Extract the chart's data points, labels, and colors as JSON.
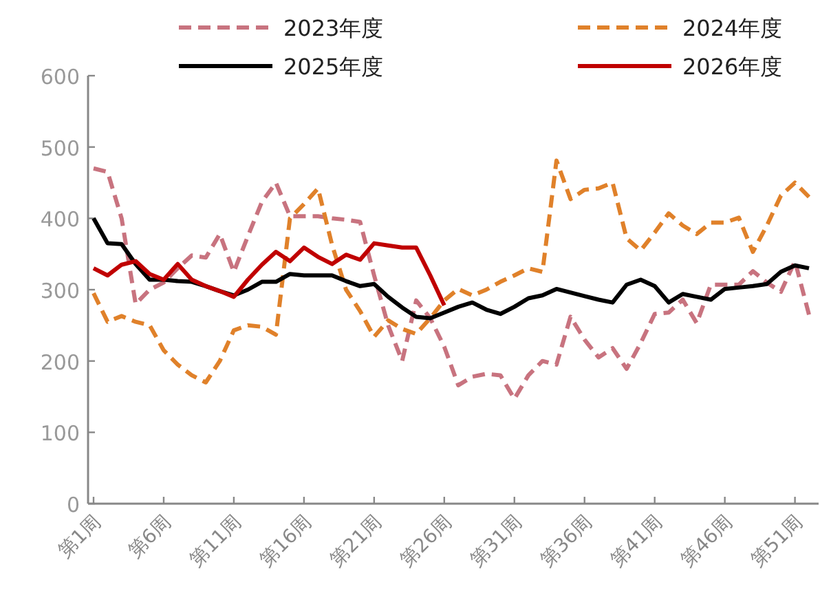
{
  "chart_data": {
    "type": "line",
    "categories": [
      "第1周",
      null,
      null,
      null,
      null,
      "第6周",
      null,
      null,
      null,
      null,
      "第11周",
      null,
      null,
      null,
      null,
      "第16周",
      null,
      null,
      null,
      null,
      "第21周",
      null,
      null,
      null,
      null,
      "第26周",
      null,
      null,
      null,
      null,
      "第31周",
      null,
      null,
      null,
      null,
      "第36周",
      null,
      null,
      null,
      null,
      "第41周",
      null,
      null,
      null,
      null,
      "第46周",
      null,
      null,
      null,
      null,
      "第51周",
      null
    ],
    "series": [
      {
        "name": "2023年度",
        "color": "#c8737f",
        "line_style": "dashed",
        "values": [
          470,
          465,
          400,
          280,
          300,
          310,
          330,
          348,
          345,
          378,
          325,
          375,
          423,
          450,
          403,
          403,
          403,
          400,
          398,
          395,
          320,
          250,
          200,
          285,
          260,
          220,
          166,
          178,
          182,
          180,
          147,
          180,
          200,
          195,
          262,
          230,
          205,
          218,
          189,
          225,
          266,
          268,
          286,
          253,
          307,
          307,
          307,
          326,
          310,
          297,
          340,
          265
        ]
      },
      {
        "name": "2024年度",
        "color": "#e0812a",
        "line_style": "dashed",
        "values": [
          295,
          255,
          263,
          255,
          250,
          215,
          195,
          180,
          170,
          200,
          243,
          250,
          248,
          237,
          400,
          420,
          442,
          363,
          300,
          270,
          234,
          257,
          245,
          238,
          260,
          285,
          301,
          292,
          300,
          311,
          320,
          330,
          325,
          481,
          427,
          440,
          442,
          450,
          372,
          355,
          380,
          407,
          390,
          378,
          394,
          394,
          401,
          353,
          390,
          432,
          450,
          430
        ]
      },
      {
        "name": "2025年度",
        "color": "#000000",
        "line_style": "solid",
        "values": [
          400,
          365,
          364,
          336,
          314,
          314,
          312,
          311,
          305,
          298,
          292,
          300,
          311,
          311,
          322,
          320,
          320,
          320,
          312,
          305,
          308,
          290,
          275,
          262,
          260,
          268,
          276,
          282,
          272,
          266,
          276,
          288,
          292,
          301,
          296,
          291,
          286,
          282,
          307,
          314,
          305,
          282,
          294,
          290,
          286,
          301,
          303,
          305,
          308,
          325,
          334,
          330
        ]
      },
      {
        "name": "2026年度",
        "color": "#c00000",
        "line_style": "solid",
        "values": [
          330,
          320,
          335,
          340,
          322,
          314,
          336,
          314,
          305,
          298,
          290,
          314,
          335,
          353,
          340,
          359,
          346,
          336,
          349,
          342,
          365,
          362,
          359,
          359,
          320,
          278,
          null,
          null,
          null,
          null,
          null,
          null,
          null,
          null,
          null,
          null,
          null,
          null,
          null,
          null,
          null,
          null,
          null,
          null,
          null,
          null,
          null,
          null,
          null,
          null,
          null,
          null
        ]
      }
    ],
    "ylim": [
      0,
      600
    ],
    "yticks": [
      0,
      100,
      200,
      300,
      400,
      500,
      600
    ],
    "legend": "top",
    "grid": false
  }
}
